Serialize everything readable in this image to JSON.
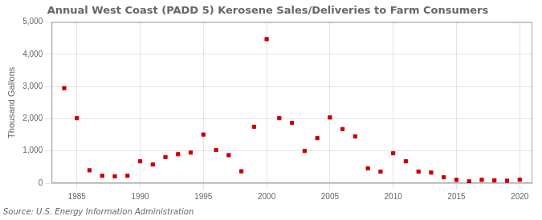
{
  "chart_data": {
    "type": "scatter",
    "title": "Annual West Coast (PADD 5) Kerosene Sales/Deliveries to Farm Consumers",
    "ylabel": "Thousand Gallons",
    "annotations": [
      "Source: U.S. Energy Information Administration"
    ],
    "x": [
      1984,
      1985,
      1986,
      1987,
      1988,
      1989,
      1990,
      1991,
      1992,
      1993,
      1994,
      1995,
      1996,
      1997,
      1998,
      1999,
      2000,
      2001,
      2002,
      2003,
      2004,
      2005,
      2006,
      2007,
      2008,
      2009,
      2010,
      2011,
      2012,
      2013,
      2014,
      2015,
      2016,
      2017,
      2018,
      2019,
      2020
    ],
    "values": [
      2950,
      2020,
      400,
      230,
      215,
      230,
      680,
      580,
      810,
      900,
      950,
      1510,
      1030,
      870,
      370,
      1750,
      4470,
      2020,
      1870,
      1000,
      1400,
      2040,
      1680,
      1450,
      460,
      360,
      930,
      680,
      360,
      330,
      185,
      105,
      55,
      105,
      90,
      75,
      110
    ],
    "color": "#cc0000",
    "marker": "square",
    "xlim": [
      1983,
      2021
    ],
    "xticks": [
      1985,
      1990,
      1995,
      2000,
      2005,
      2010,
      2015,
      2020
    ],
    "ylim": [
      0,
      5000
    ],
    "yticks": [
      0,
      {
        "value": 1000,
        "label": "1,000"
      },
      {
        "value": 2000,
        "label": "2,000"
      },
      {
        "value": 3000,
        "label": "3,000"
      },
      {
        "value": 4000,
        "label": "4,000"
      },
      {
        "value": 5000,
        "label": "5,000"
      }
    ],
    "grid": true
  }
}
